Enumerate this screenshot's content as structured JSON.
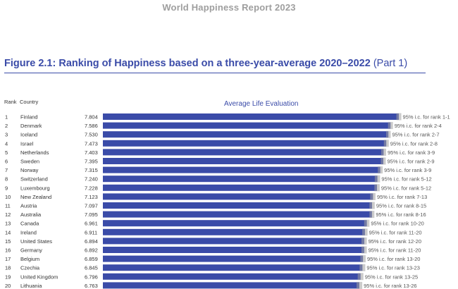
{
  "report_header": "World Happiness Report 2023",
  "figure": {
    "title_main": "Figure 2.1: Ranking of Happiness based on a three-year-average 2020–2022",
    "title_part": "(Part 1)"
  },
  "columns": {
    "rank": "Rank",
    "country": "Country"
  },
  "colors": {
    "bar": "#3a4ba8",
    "ci": "#a0a0a0",
    "title": "#3a4ba8",
    "header": "#9e9e9e"
  },
  "chart_data": {
    "type": "bar",
    "orientation": "horizontal",
    "title": "Average Life Evaluation",
    "categories": [
      "Finland",
      "Denmark",
      "Iceland",
      "Israel",
      "Netherlands",
      "Sweden",
      "Norway",
      "Switzerland",
      "Luxembourg",
      "New Zealand",
      "Austria",
      "Australia",
      "Canada",
      "Ireland",
      "United States",
      "Germany",
      "Belgium",
      "Czechia",
      "United Kingdom",
      "Lithuania"
    ],
    "ranks": [
      1,
      2,
      3,
      4,
      5,
      6,
      7,
      8,
      9,
      10,
      11,
      12,
      13,
      14,
      15,
      16,
      17,
      18,
      19,
      20
    ],
    "values": [
      7.804,
      7.586,
      7.53,
      7.473,
      7.403,
      7.395,
      7.315,
      7.24,
      7.228,
      7.123,
      7.097,
      7.095,
      6.961,
      6.911,
      6.894,
      6.892,
      6.859,
      6.845,
      6.796,
      6.763
    ],
    "value_labels": [
      "7.804",
      "7.586",
      "7.530",
      "7.473",
      "7.403",
      "7.395",
      "7.315",
      "7.240",
      "7.228",
      "7.123",
      "7.097",
      "7.095",
      "6.961",
      "6.911",
      "6.894",
      "6.892",
      "6.859",
      "6.845",
      "6.796",
      "6.763"
    ],
    "ci_labels": [
      "95% i.c. for rank 1-1",
      "95% i.c. for rank 2-4",
      "95% i.c. for rank 2-7",
      "95% i.c. for rank 2-8",
      "95% i.c. for rank 3-9",
      "95% i.c. for rank 2-9",
      "95% i.c. for rank 3-9",
      "95% i.c. for rank 5-12",
      "95% i.c. for rank 5-12",
      "95% i.c. for rank 7-13",
      "95% i.c. for rank 8-15",
      "95% i.c. for rank 8-16",
      "95% i.c. for rank 10-20",
      "95% i.c. for rank 11-20",
      "95% i.c. for rank 12-20",
      "95% i.c. for rank 11-20",
      "95% i.c. for rank 13-20",
      "95% i.c. for rank 13-23",
      "95% i.c. for rank 13-25",
      "95% i.c. for rank 13-26"
    ],
    "ci_low": [
      7.74,
      7.52,
      7.47,
      7.41,
      7.34,
      7.33,
      7.25,
      7.17,
      7.16,
      7.05,
      7.03,
      7.03,
      6.89,
      6.84,
      6.82,
      6.82,
      6.79,
      6.77,
      6.72,
      6.69
    ],
    "ci_high": [
      7.87,
      7.65,
      7.59,
      7.54,
      7.47,
      7.46,
      7.38,
      7.31,
      7.3,
      7.19,
      7.17,
      7.16,
      7.03,
      6.98,
      6.96,
      6.96,
      6.93,
      6.92,
      6.87,
      6.84
    ],
    "xlim": [
      0,
      8
    ],
    "grid": false,
    "legend": "none"
  }
}
